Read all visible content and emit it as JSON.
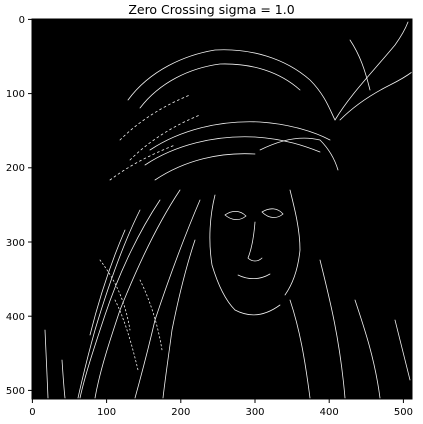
{
  "figure": {
    "title": "Zero Crossing sigma = 1.0",
    "image_subject": "edge map of a portrait of a woman wearing a wide-brimmed feathered hat",
    "colors": {
      "background": "#000000",
      "edges": "#ffffff",
      "axes": "#000000",
      "page": "#ffffff"
    }
  },
  "axes": {
    "x_ticks": [
      "0",
      "100",
      "200",
      "300",
      "400",
      "500"
    ],
    "y_ticks": [
      "0",
      "100",
      "200",
      "300",
      "400",
      "500"
    ],
    "x_range": [
      0,
      512
    ],
    "y_range": [
      512,
      0
    ],
    "grid": false
  }
}
